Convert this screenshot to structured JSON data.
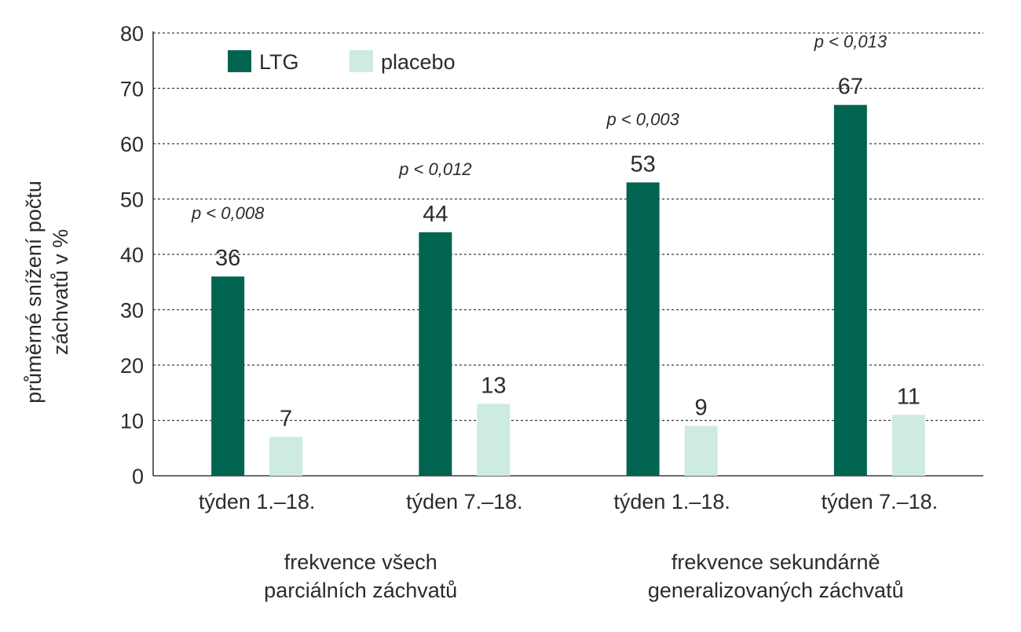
{
  "chart_data": {
    "type": "bar",
    "ylabel_lines": [
      "průměrné snížení počtu",
      "záchvatů v %"
    ],
    "ylim": [
      0,
      80
    ],
    "yticks": [
      0,
      10,
      20,
      30,
      40,
      50,
      60,
      70,
      80
    ],
    "grid": true,
    "legend_position": "top-left",
    "categories": [
      "týden 1.–18.",
      "týden 7.–18.",
      "týden 1.–18.",
      "týden 7.–18."
    ],
    "groups": [
      {
        "lines": [
          "frekvence všech",
          "parciálních záchvatů"
        ],
        "categories": [
          0,
          1
        ]
      },
      {
        "lines": [
          "frekvence sekundárně",
          "generalizovaných záchvatů"
        ],
        "categories": [
          2,
          3
        ]
      }
    ],
    "series": [
      {
        "name": "LTG",
        "color": "#006450",
        "values": [
          36,
          44,
          53,
          67
        ]
      },
      {
        "name": "placebo",
        "color": "#cdeae3",
        "values": [
          7,
          13,
          9,
          11
        ]
      }
    ],
    "annotations": [
      "p < 0,008",
      "p < 0,012",
      "p < 0,003",
      "p < 0,013"
    ]
  }
}
